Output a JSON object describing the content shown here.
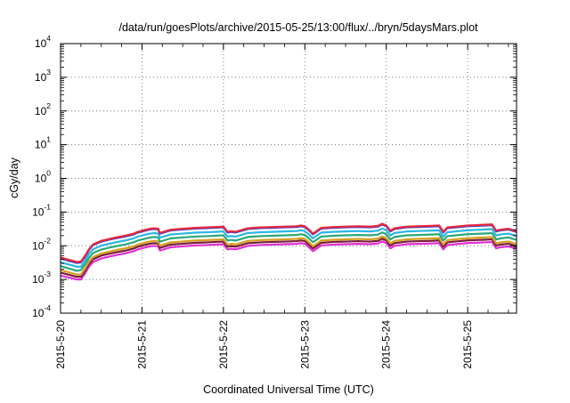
{
  "chart_data": {
    "type": "line",
    "title": "/data/run/goesPlots/archive/2015-05-25/13:00/flux/../bryn/5daysMars.plot",
    "xlabel": "Coordinated Universal Time (UTC)",
    "ylabel": "cGy/day",
    "y_scale": "log",
    "ylim": [
      0.0001,
      10000
    ],
    "y_ticks": [
      {
        "base": "10",
        "exp": "4"
      },
      {
        "base": "10",
        "exp": "3"
      },
      {
        "base": "10",
        "exp": "2"
      },
      {
        "base": "10",
        "exp": "1"
      },
      {
        "base": "10",
        "exp": "0"
      },
      {
        "base": "10",
        "exp": "-1"
      },
      {
        "base": "10",
        "exp": "-2"
      },
      {
        "base": "10",
        "exp": "-3"
      },
      {
        "base": "10",
        "exp": "-4"
      }
    ],
    "x_ticks": [
      "2015-5-20",
      "2015-5-21",
      "2015-5-22",
      "2015-5-23",
      "2015-5-24",
      "2015-5-25"
    ],
    "xlim_days": [
      0,
      5.6
    ],
    "grid": true,
    "x": [
      0.0,
      0.2,
      0.25,
      0.3,
      0.35,
      0.4,
      0.5,
      0.6,
      0.7,
      0.8,
      0.9,
      0.95,
      1.0,
      1.05,
      1.1,
      1.15,
      1.2,
      1.22,
      1.35,
      1.5,
      1.65,
      1.8,
      1.9,
      2.0,
      2.05,
      2.1,
      2.15,
      2.3,
      2.45,
      2.6,
      2.75,
      2.9,
      2.95,
      3.0,
      3.05,
      3.1,
      3.2,
      3.35,
      3.5,
      3.65,
      3.8,
      3.9,
      3.95,
      4.0,
      4.05,
      4.1,
      4.25,
      4.4,
      4.55,
      4.65,
      4.7,
      4.75,
      4.8,
      4.9,
      5.0,
      5.1,
      5.2,
      5.3,
      5.35,
      5.4,
      5.5,
      5.6
    ],
    "series": [
      {
        "color": "#e8283c",
        "values": [
          0.0045,
          0.0033,
          0.0034,
          0.005,
          0.008,
          0.011,
          0.014,
          0.016,
          0.018,
          0.02,
          0.023,
          0.026,
          0.028,
          0.03,
          0.032,
          0.033,
          0.032,
          0.024,
          0.03,
          0.032,
          0.034,
          0.035,
          0.036,
          0.037,
          0.026,
          0.027,
          0.026,
          0.033,
          0.035,
          0.036,
          0.037,
          0.038,
          0.04,
          0.038,
          0.03,
          0.023,
          0.034,
          0.036,
          0.037,
          0.038,
          0.037,
          0.039,
          0.045,
          0.04,
          0.028,
          0.033,
          0.037,
          0.038,
          0.039,
          0.04,
          0.026,
          0.035,
          0.036,
          0.038,
          0.04,
          0.041,
          0.042,
          0.043,
          0.028,
          0.03,
          0.032,
          0.027
        ]
      },
      {
        "color": "#3a3ad6",
        "values": [
          0.0042,
          0.0031,
          0.0032,
          0.0047,
          0.0076,
          0.0105,
          0.0133,
          0.0152,
          0.0171,
          0.019,
          0.0218,
          0.0247,
          0.0266,
          0.0285,
          0.0304,
          0.0314,
          0.0304,
          0.0228,
          0.0285,
          0.0304,
          0.0323,
          0.0333,
          0.0342,
          0.0352,
          0.0247,
          0.0257,
          0.0247,
          0.0314,
          0.0333,
          0.0342,
          0.0352,
          0.0361,
          0.038,
          0.0361,
          0.0285,
          0.0218,
          0.0323,
          0.0342,
          0.0352,
          0.0361,
          0.0352,
          0.0371,
          0.0428,
          0.038,
          0.0266,
          0.0314,
          0.0352,
          0.0361,
          0.0371,
          0.038,
          0.0247,
          0.0333,
          0.0342,
          0.0361,
          0.038,
          0.039,
          0.0399,
          0.0409,
          0.0266,
          0.0285,
          0.0304,
          0.0257
        ]
      },
      {
        "color": "#29b6e6",
        "values": [
          0.0032,
          0.0024,
          0.0024,
          0.0036,
          0.0058,
          0.0079,
          0.0101,
          0.0115,
          0.013,
          0.0144,
          0.0166,
          0.0187,
          0.0202,
          0.0216,
          0.023,
          0.0238,
          0.023,
          0.0173,
          0.0216,
          0.023,
          0.0245,
          0.0252,
          0.0259,
          0.0266,
          0.0187,
          0.0194,
          0.0187,
          0.0238,
          0.0252,
          0.0259,
          0.0266,
          0.0274,
          0.0288,
          0.0274,
          0.0216,
          0.0166,
          0.0245,
          0.0259,
          0.0266,
          0.0274,
          0.0266,
          0.0281,
          0.0324,
          0.0288,
          0.0202,
          0.0238,
          0.0266,
          0.0274,
          0.0281,
          0.0288,
          0.0187,
          0.0252,
          0.0259,
          0.0274,
          0.0288,
          0.0295,
          0.0302,
          0.031,
          0.0202,
          0.0216,
          0.023,
          0.0194
        ]
      },
      {
        "color": "#2aa878",
        "values": [
          0.0025,
          0.0018,
          0.0019,
          0.0028,
          0.0044,
          0.0061,
          0.0077,
          0.0088,
          0.0099,
          0.011,
          0.0127,
          0.0143,
          0.0154,
          0.0165,
          0.0176,
          0.0182,
          0.0176,
          0.0132,
          0.0165,
          0.0176,
          0.0187,
          0.0193,
          0.0198,
          0.0204,
          0.0143,
          0.0149,
          0.0143,
          0.0182,
          0.0193,
          0.0198,
          0.0204,
          0.0209,
          0.022,
          0.0209,
          0.0165,
          0.0127,
          0.0187,
          0.0198,
          0.0204,
          0.0209,
          0.0204,
          0.0215,
          0.0248,
          0.022,
          0.0154,
          0.0182,
          0.0204,
          0.0209,
          0.0215,
          0.022,
          0.0143,
          0.0193,
          0.0198,
          0.0209,
          0.022,
          0.0226,
          0.0231,
          0.0237,
          0.0154,
          0.0165,
          0.0176,
          0.0149
        ]
      },
      {
        "color": "#d4a020",
        "values": [
          0.0019,
          0.0014,
          0.0014,
          0.0021,
          0.0034,
          0.0046,
          0.0059,
          0.0067,
          0.0076,
          0.0084,
          0.0097,
          0.0109,
          0.0118,
          0.0126,
          0.0134,
          0.0139,
          0.0134,
          0.0101,
          0.0126,
          0.0134,
          0.0143,
          0.0147,
          0.0151,
          0.0155,
          0.0109,
          0.0113,
          0.0109,
          0.0139,
          0.0147,
          0.0151,
          0.0155,
          0.016,
          0.0168,
          0.016,
          0.0126,
          0.0097,
          0.0143,
          0.0151,
          0.0155,
          0.016,
          0.0155,
          0.0164,
          0.0189,
          0.0168,
          0.0118,
          0.0139,
          0.0155,
          0.016,
          0.0164,
          0.0168,
          0.0109,
          0.0147,
          0.0151,
          0.016,
          0.0168,
          0.0172,
          0.0176,
          0.0181,
          0.0118,
          0.0126,
          0.0134,
          0.0113
        ]
      },
      {
        "color": "#7a1e3c",
        "values": [
          0.0016,
          0.0012,
          0.0012,
          0.0018,
          0.0029,
          0.004,
          0.0051,
          0.0058,
          0.0065,
          0.0072,
          0.0083,
          0.0094,
          0.0101,
          0.0108,
          0.0115,
          0.0119,
          0.0115,
          0.0086,
          0.0108,
          0.0115,
          0.0122,
          0.0126,
          0.013,
          0.0133,
          0.0094,
          0.0097,
          0.0094,
          0.0119,
          0.0126,
          0.013,
          0.0133,
          0.0137,
          0.0144,
          0.0137,
          0.0108,
          0.0083,
          0.0122,
          0.013,
          0.0133,
          0.0137,
          0.0133,
          0.014,
          0.0162,
          0.0144,
          0.0101,
          0.0119,
          0.0133,
          0.0137,
          0.014,
          0.0144,
          0.0094,
          0.0126,
          0.013,
          0.0137,
          0.0144,
          0.0148,
          0.0151,
          0.0155,
          0.0101,
          0.0108,
          0.0115,
          0.0097
        ]
      },
      {
        "color": "#e030d0",
        "values": [
          0.0013,
          0.001,
          0.001,
          0.0015,
          0.0024,
          0.0033,
          0.0042,
          0.0048,
          0.0054,
          0.006,
          0.0069,
          0.0078,
          0.0084,
          0.009,
          0.0096,
          0.0099,
          0.0096,
          0.0072,
          0.009,
          0.0096,
          0.0102,
          0.0105,
          0.0108,
          0.0111,
          0.0078,
          0.0081,
          0.0078,
          0.0099,
          0.0105,
          0.0108,
          0.0111,
          0.0114,
          0.012,
          0.0114,
          0.009,
          0.0069,
          0.0102,
          0.0108,
          0.0111,
          0.0114,
          0.0111,
          0.0117,
          0.0135,
          0.012,
          0.0084,
          0.0099,
          0.0111,
          0.0114,
          0.0117,
          0.012,
          0.0078,
          0.0105,
          0.0108,
          0.0114,
          0.012,
          0.0123,
          0.0126,
          0.0129,
          0.0084,
          0.009,
          0.0096,
          0.0081
        ]
      }
    ]
  }
}
